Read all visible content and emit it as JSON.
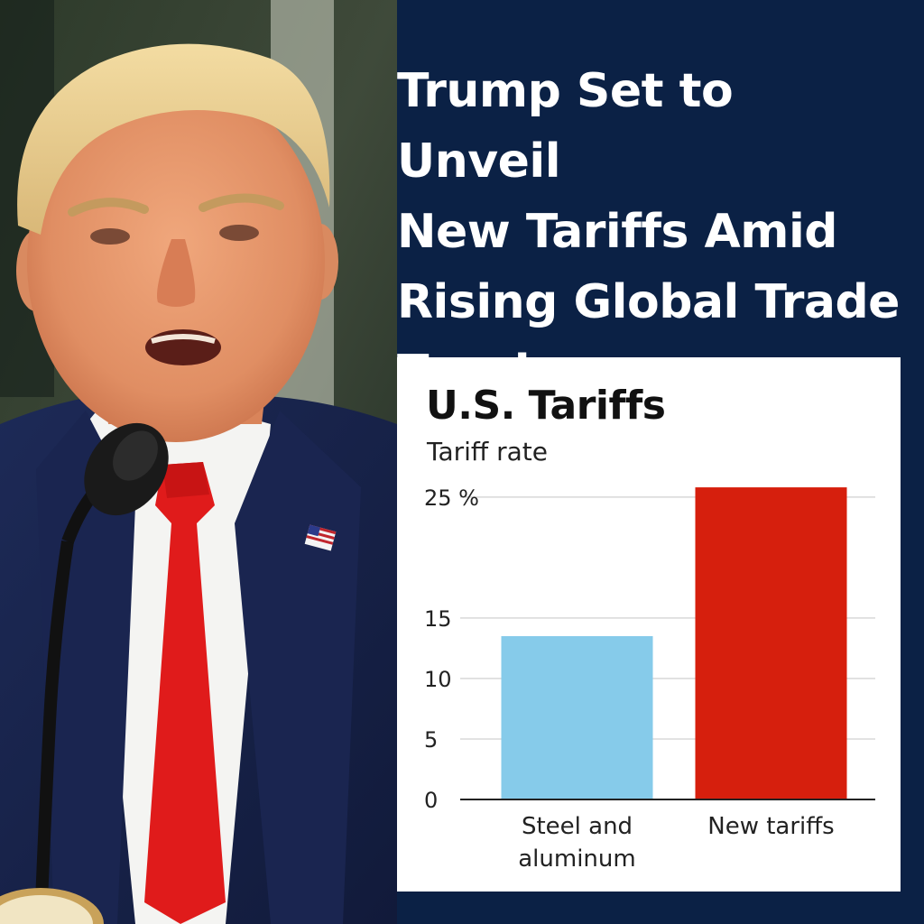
{
  "headline": {
    "lines": [
      "Trump Set to Unveil",
      "New Tariffs Amid",
      "Rising Global Trade",
      "Tensions"
    ]
  },
  "photo": {
    "description_icon": "speaker-at-podium"
  },
  "chart_data": {
    "type": "bar",
    "title": "U.S. Tariffs",
    "ylabel": "Tariff rate",
    "xlabel": "",
    "categories": [
      "Steel and aluminum",
      "New tariffs"
    ],
    "category_lines": [
      [
        "Steel and",
        "aluminum"
      ],
      [
        "New tariffs"
      ]
    ],
    "values": [
      13.5,
      25.8
    ],
    "colors": [
      "#86cbea",
      "#d61f0d"
    ],
    "yticks": [
      {
        "value": 0,
        "label": "0"
      },
      {
        "value": 5,
        "label": "5"
      },
      {
        "value": 10,
        "label": "10"
      },
      {
        "value": 15,
        "label": "15"
      },
      {
        "value": 25,
        "label": "25 %"
      }
    ],
    "ylim": [
      0,
      27
    ],
    "grid": true
  }
}
